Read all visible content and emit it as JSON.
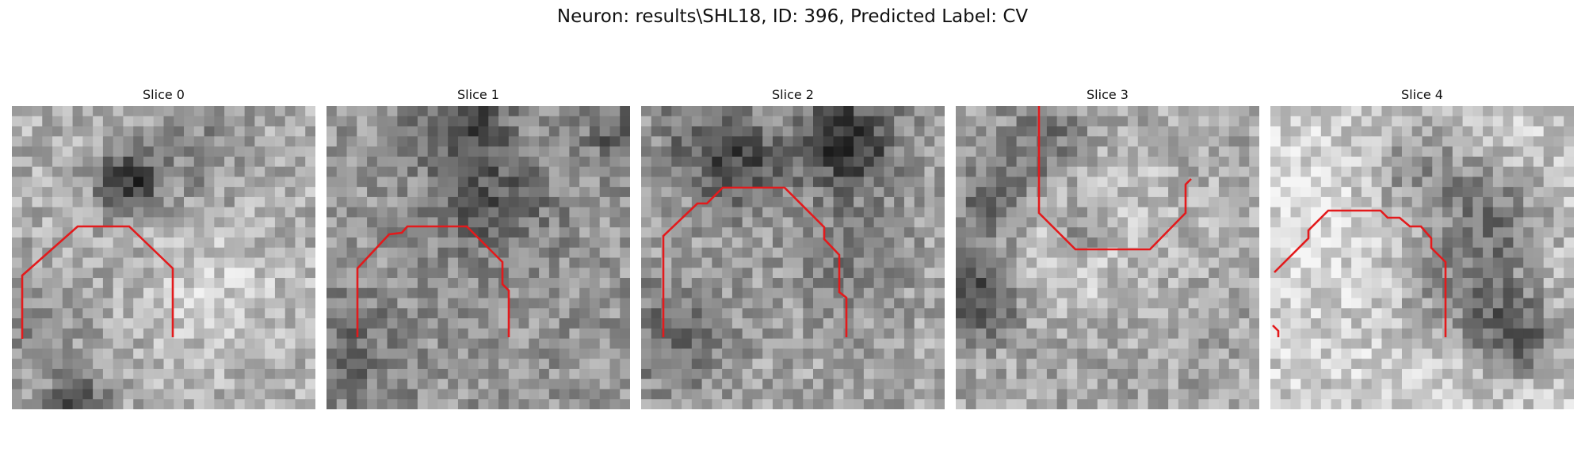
{
  "figure": {
    "suptitle": "Neuron: results\\SHL18, ID: 396, Predicted Label: CV",
    "contour_color": "#e31a1c",
    "grid_size": 30,
    "panels": [
      {
        "title": "Slice 0"
      },
      {
        "title": "Slice 1"
      },
      {
        "title": "Slice 2"
      },
      {
        "title": "Slice 3"
      },
      {
        "title": "Slice 4"
      }
    ]
  }
}
